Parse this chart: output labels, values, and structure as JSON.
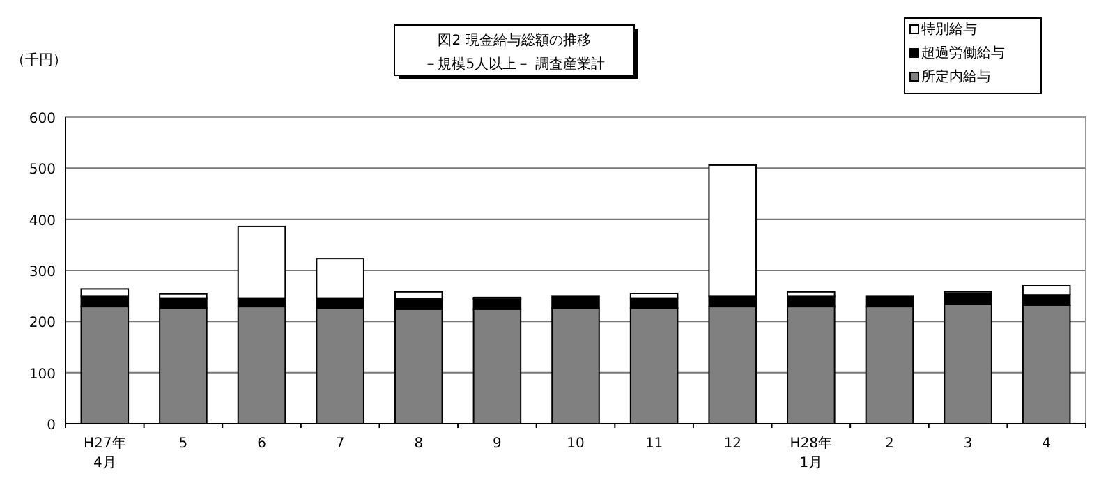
{
  "chart_data": {
    "type": "bar",
    "stacked": true,
    "title": "図2  現金給与総額の推移",
    "subtitle": "－規模5人以上－  調査産業計",
    "ylabel": "（千円）",
    "categories": [
      "H27年\n4月",
      "5",
      "6",
      "7",
      "8",
      "9",
      "10",
      "11",
      "12",
      "H28年\n1月",
      "2",
      "3",
      "4"
    ],
    "series": [
      {
        "name": "所定内給与",
        "color": "#808080",
        "values": [
          229,
          226,
          229,
          226,
          224,
          224,
          226,
          226,
          229,
          229,
          229,
          234,
          232
        ]
      },
      {
        "name": "超過労働給与",
        "color": "#000000",
        "values": [
          20,
          20,
          17,
          20,
          20,
          20,
          23,
          20,
          20,
          20,
          20,
          21,
          20
        ]
      },
      {
        "name": "特別給与",
        "color": "#ffffff",
        "values": [
          15,
          8,
          140,
          77,
          14,
          3,
          0,
          9,
          257,
          9,
          0,
          3,
          18
        ]
      }
    ],
    "ylim": [
      0,
      600
    ],
    "yticks": [
      0,
      100,
      200,
      300,
      400,
      500,
      600
    ],
    "grid": "y",
    "legend": "top right"
  }
}
